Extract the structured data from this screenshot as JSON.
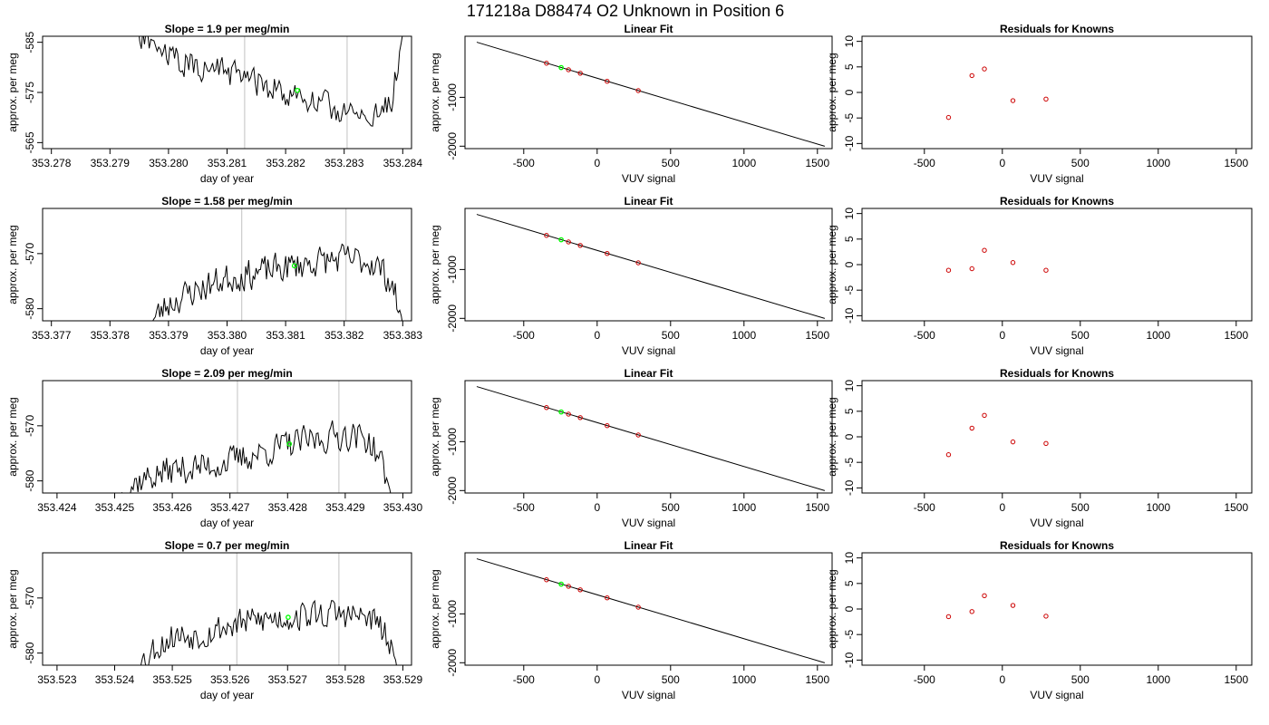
{
  "figure": {
    "title": "171218a     D88474   O2 Unknown in Position  6"
  },
  "colors": {
    "trace": "#000000",
    "unknown_marker": "#00ff00",
    "known_marker": "#cc0000",
    "vertical_lines": "#cccccc",
    "box": "#000000"
  },
  "chart_data": [
    {
      "type": "line",
      "row": 0,
      "col": 0,
      "title": "Slope =  1.9  per meg/min",
      "xlabel": "day of year",
      "ylabel": "approx. per meg",
      "xlim": [
        353.27785,
        353.28415
      ],
      "ylim": [
        -586.2,
        -563.8
      ],
      "ylim_top_is_low": true,
      "xticks": [
        353.278,
        353.279,
        353.28,
        353.281,
        353.282,
        353.283,
        353.284
      ],
      "xtick_labels": [
        "353.278",
        "353.279",
        "353.280",
        "353.281",
        "353.282",
        "353.283",
        "353.284"
      ],
      "yticks": [
        -585,
        -575,
        -565
      ],
      "ytick_labels": [
        "-585",
        "-575",
        "-565"
      ],
      "vlines": [
        353.2813,
        353.28305
      ],
      "unknown_point": {
        "x": 353.2822,
        "y": -575.4
      },
      "trace_start": 353.2794,
      "trace_end": 353.284,
      "trace_seed": 11,
      "trace_knots": [
        [
          353.2794,
          -586.5
        ],
        [
          353.2798,
          -584
        ],
        [
          353.28,
          -582
        ],
        [
          353.2805,
          -580
        ],
        [
          353.281,
          -579
        ],
        [
          353.2815,
          -577
        ],
        [
          353.282,
          -575
        ],
        [
          353.2825,
          -573
        ],
        [
          353.283,
          -571
        ],
        [
          353.2835,
          -570
        ],
        [
          353.2838,
          -573
        ],
        [
          353.2839,
          -580
        ],
        [
          353.284,
          -586.5
        ]
      ]
    },
    {
      "type": "line",
      "title": "Linear Fit",
      "xlabel": "VUV signal",
      "ylabel": "approx. per meg",
      "xlim": [
        -900,
        1600
      ],
      "ylim": [
        -2050,
        250
      ],
      "xticks": [
        -500,
        0,
        500,
        1000,
        1500
      ],
      "xtick_labels": [
        "-500",
        "0",
        "500",
        "1000",
        "1500"
      ],
      "yticks": [
        -1000,
        -2000
      ],
      "ytick_labels": [
        "-1000",
        "-2000"
      ],
      "fit_line": [
        [
          -820,
          128
        ],
        [
          1550,
          -2002
        ]
      ],
      "known_points": [
        [
          -345,
          -302
        ],
        [
          -195,
          -436
        ],
        [
          -115,
          -507
        ],
        [
          68,
          -672
        ],
        [
          280,
          -863
        ]
      ],
      "unknown_point": [
        -245,
        -391
      ]
    },
    {
      "type": "scatter",
      "title": "Residuals for Knowns",
      "xlabel": "VUV signal",
      "ylabel": "approx. per meg",
      "xlim": [
        -900,
        1600
      ],
      "ylim": [
        -11,
        11
      ],
      "xticks": [
        -500,
        0,
        500,
        1000,
        1500
      ],
      "xtick_labels": [
        "-500",
        "0",
        "500",
        "1000",
        "1500"
      ],
      "yticks": [
        -10,
        -5,
        0,
        5,
        10
      ],
      "ytick_labels": [
        "-10",
        "-5",
        "0",
        "5",
        "10"
      ],
      "points": [
        [
          -345,
          -4.9
        ],
        [
          -195,
          3.3
        ],
        [
          -115,
          4.6
        ],
        [
          68,
          -1.6
        ],
        [
          280,
          -1.3
        ]
      ]
    },
    {
      "type": "line",
      "title": "Slope =  1.58  per meg/min",
      "xlabel": "day of year",
      "ylabel": "approx. per meg",
      "xlim": [
        353.37685,
        353.38315
      ],
      "ylim": [
        -582.2,
        -561.8
      ],
      "ylim_top_is_low": false,
      "xticks": [
        353.377,
        353.378,
        353.379,
        353.38,
        353.381,
        353.382,
        353.383
      ],
      "xtick_labels": [
        "353.377",
        "353.378",
        "353.379",
        "353.380",
        "353.381",
        "353.382",
        "353.383"
      ],
      "yticks": [
        -580,
        -570
      ],
      "ytick_labels": [
        "-580",
        "-570"
      ],
      "vlines": [
        353.38025,
        353.38203
      ],
      "unknown_point": {
        "x": 353.38115,
        "y": -572.2
      },
      "trace_start": 353.3787,
      "trace_end": 353.383,
      "trace_seed": 23,
      "trace_knots": [
        [
          353.3787,
          -582.5
        ],
        [
          353.379,
          -579
        ],
        [
          353.3795,
          -576.5
        ],
        [
          353.38,
          -574.5
        ],
        [
          353.3805,
          -573.5
        ],
        [
          353.381,
          -572.5
        ],
        [
          353.3815,
          -571.5
        ],
        [
          353.382,
          -571
        ],
        [
          353.3825,
          -571.5
        ],
        [
          353.3828,
          -575
        ],
        [
          353.383,
          -582.5
        ]
      ]
    },
    {
      "type": "line",
      "title": "Linear Fit",
      "xlabel": "VUV signal",
      "ylabel": "approx. per meg",
      "xlim": [
        -900,
        1600
      ],
      "ylim": [
        -2050,
        250
      ],
      "xticks": [
        -500,
        0,
        500,
        1000,
        1500
      ],
      "xtick_labels": [
        "-500",
        "0",
        "500",
        "1000",
        "1500"
      ],
      "yticks": [
        -1000,
        -2000
      ],
      "ytick_labels": [
        "-1000",
        "-2000"
      ],
      "fit_line": [
        [
          -820,
          128
        ],
        [
          1550,
          -2002
        ]
      ],
      "known_points": [
        [
          -345,
          -302
        ],
        [
          -195,
          -436
        ],
        [
          -115,
          -507
        ],
        [
          68,
          -672
        ],
        [
          280,
          -863
        ]
      ],
      "unknown_point": [
        -245,
        -391
      ]
    },
    {
      "type": "scatter",
      "title": "Residuals for Knowns",
      "xlabel": "VUV signal",
      "ylabel": "approx. per meg",
      "xlim": [
        -900,
        1600
      ],
      "ylim": [
        -11,
        11
      ],
      "xticks": [
        -500,
        0,
        500,
        1000,
        1500
      ],
      "xtick_labels": [
        "-500",
        "0",
        "500",
        "1000",
        "1500"
      ],
      "yticks": [
        -10,
        -5,
        0,
        5,
        10
      ],
      "ytick_labels": [
        "-10",
        "-5",
        "0",
        "5",
        "10"
      ],
      "points": [
        [
          -345,
          -1.1
        ],
        [
          -195,
          -0.8
        ],
        [
          -115,
          2.8
        ],
        [
          68,
          0.4
        ],
        [
          280,
          -1.1
        ]
      ]
    },
    {
      "type": "line",
      "title": "Slope =  2.09  per meg/min",
      "xlabel": "day of year",
      "ylabel": "approx. per meg",
      "xlim": [
        353.42375,
        353.43015
      ],
      "ylim": [
        -582.2,
        -561.8
      ],
      "ylim_top_is_low": false,
      "xticks": [
        353.424,
        353.425,
        353.426,
        353.427,
        353.428,
        353.429,
        353.43
      ],
      "xtick_labels": [
        "353.424",
        "353.425",
        "353.426",
        "353.427",
        "353.428",
        "353.429",
        "353.430"
      ],
      "yticks": [
        -580,
        -570
      ],
      "ytick_labels": [
        "-580",
        "-570"
      ],
      "vlines": [
        353.42713,
        353.42889
      ],
      "unknown_point": {
        "x": 353.42803,
        "y": -573.3
      },
      "trace_start": 353.4251,
      "trace_end": 353.4298,
      "trace_seed": 37,
      "trace_knots": [
        [
          353.4251,
          -582.5
        ],
        [
          353.4254,
          -580
        ],
        [
          353.426,
          -578
        ],
        [
          353.4265,
          -577.5
        ],
        [
          353.427,
          -576.5
        ],
        [
          353.4275,
          -575
        ],
        [
          353.428,
          -573.5
        ],
        [
          353.4285,
          -572.5
        ],
        [
          353.429,
          -571.5
        ],
        [
          353.4294,
          -572.5
        ],
        [
          353.4296,
          -576
        ],
        [
          353.4298,
          -582.5
        ]
      ]
    },
    {
      "type": "line",
      "title": "Linear Fit",
      "xlabel": "VUV signal",
      "ylabel": "approx. per meg",
      "xlim": [
        -900,
        1600
      ],
      "ylim": [
        -2050,
        250
      ],
      "xticks": [
        -500,
        0,
        500,
        1000,
        1500
      ],
      "xtick_labels": [
        "-500",
        "0",
        "500",
        "1000",
        "1500"
      ],
      "yticks": [
        -1000,
        -2000
      ],
      "ytick_labels": [
        "-1000",
        "-2000"
      ],
      "fit_line": [
        [
          -820,
          128
        ],
        [
          1550,
          -2002
        ]
      ],
      "known_points": [
        [
          -345,
          -302
        ],
        [
          -195,
          -436
        ],
        [
          -115,
          -507
        ],
        [
          68,
          -672
        ],
        [
          280,
          -863
        ]
      ],
      "unknown_point": [
        -245,
        -391
      ]
    },
    {
      "type": "scatter",
      "title": "Residuals for Knowns",
      "xlabel": "VUV signal",
      "ylabel": "approx. per meg",
      "xlim": [
        -900,
        1600
      ],
      "ylim": [
        -11,
        11
      ],
      "xticks": [
        -500,
        0,
        500,
        1000,
        1500
      ],
      "xtick_labels": [
        "-500",
        "0",
        "500",
        "1000",
        "1500"
      ],
      "yticks": [
        -10,
        -5,
        0,
        5,
        10
      ],
      "ytick_labels": [
        "-10",
        "-5",
        "0",
        "5",
        "10"
      ],
      "points": [
        [
          -345,
          -3.5
        ],
        [
          -195,
          1.7
        ],
        [
          -115,
          4.2
        ],
        [
          68,
          -1.0
        ],
        [
          280,
          -1.3
        ]
      ]
    },
    {
      "type": "line",
      "title": "Slope =  0.7  per meg/min",
      "xlabel": "day of year",
      "ylabel": "approx. per meg",
      "xlim": [
        353.52275,
        353.52915
      ],
      "ylim": [
        -582.2,
        -561.8
      ],
      "ylim_top_is_low": false,
      "xticks": [
        353.523,
        353.524,
        353.525,
        353.526,
        353.527,
        353.528,
        353.529
      ],
      "xtick_labels": [
        "353.523",
        "353.524",
        "353.525",
        "353.526",
        "353.527",
        "353.528",
        "353.529"
      ],
      "yticks": [
        -580,
        -570
      ],
      "ytick_labels": [
        "-580",
        "-570"
      ],
      "vlines": [
        353.52612,
        353.52789
      ],
      "unknown_point": {
        "x": 353.52701,
        "y": -573.5
      },
      "trace_start": 353.5244,
      "trace_end": 353.5289,
      "trace_seed": 53,
      "trace_knots": [
        [
          353.5244,
          -582.5
        ],
        [
          353.5247,
          -579
        ],
        [
          353.525,
          -577
        ],
        [
          353.5255,
          -576.5
        ],
        [
          353.526,
          -575
        ],
        [
          353.5265,
          -574
        ],
        [
          353.527,
          -573.5
        ],
        [
          353.5275,
          -573
        ],
        [
          353.528,
          -573
        ],
        [
          353.5285,
          -574
        ],
        [
          353.5287,
          -577
        ],
        [
          353.5289,
          -582.5
        ]
      ]
    },
    {
      "type": "line",
      "title": "Linear Fit",
      "xlabel": "VUV signal",
      "ylabel": "approx. per meg",
      "xlim": [
        -900,
        1600
      ],
      "ylim": [
        -2050,
        250
      ],
      "xticks": [
        -500,
        0,
        500,
        1000,
        1500
      ],
      "xtick_labels": [
        "-500",
        "0",
        "500",
        "1000",
        "1500"
      ],
      "yticks": [
        -1000,
        -2000
      ],
      "ytick_labels": [
        "-1000",
        "-2000"
      ],
      "fit_line": [
        [
          -820,
          128
        ],
        [
          1550,
          -2002
        ]
      ],
      "known_points": [
        [
          -345,
          -302
        ],
        [
          -195,
          -436
        ],
        [
          -115,
          -507
        ],
        [
          68,
          -672
        ],
        [
          280,
          -863
        ]
      ],
      "unknown_point": [
        -245,
        -391
      ]
    },
    {
      "type": "scatter",
      "title": "Residuals for Knowns",
      "xlabel": "VUV signal",
      "ylabel": "approx. per meg",
      "xlim": [
        -900,
        1600
      ],
      "ylim": [
        -11,
        11
      ],
      "xticks": [
        -500,
        0,
        500,
        1000,
        1500
      ],
      "xtick_labels": [
        "-500",
        "0",
        "500",
        "1000",
        "1500"
      ],
      "yticks": [
        -10,
        -5,
        0,
        5,
        10
      ],
      "ytick_labels": [
        "-10",
        "-5",
        "0",
        "5",
        "10"
      ],
      "points": [
        [
          -345,
          -1.5
        ],
        [
          -195,
          -0.5
        ],
        [
          -115,
          2.6
        ],
        [
          68,
          0.7
        ],
        [
          280,
          -1.4
        ]
      ]
    }
  ]
}
